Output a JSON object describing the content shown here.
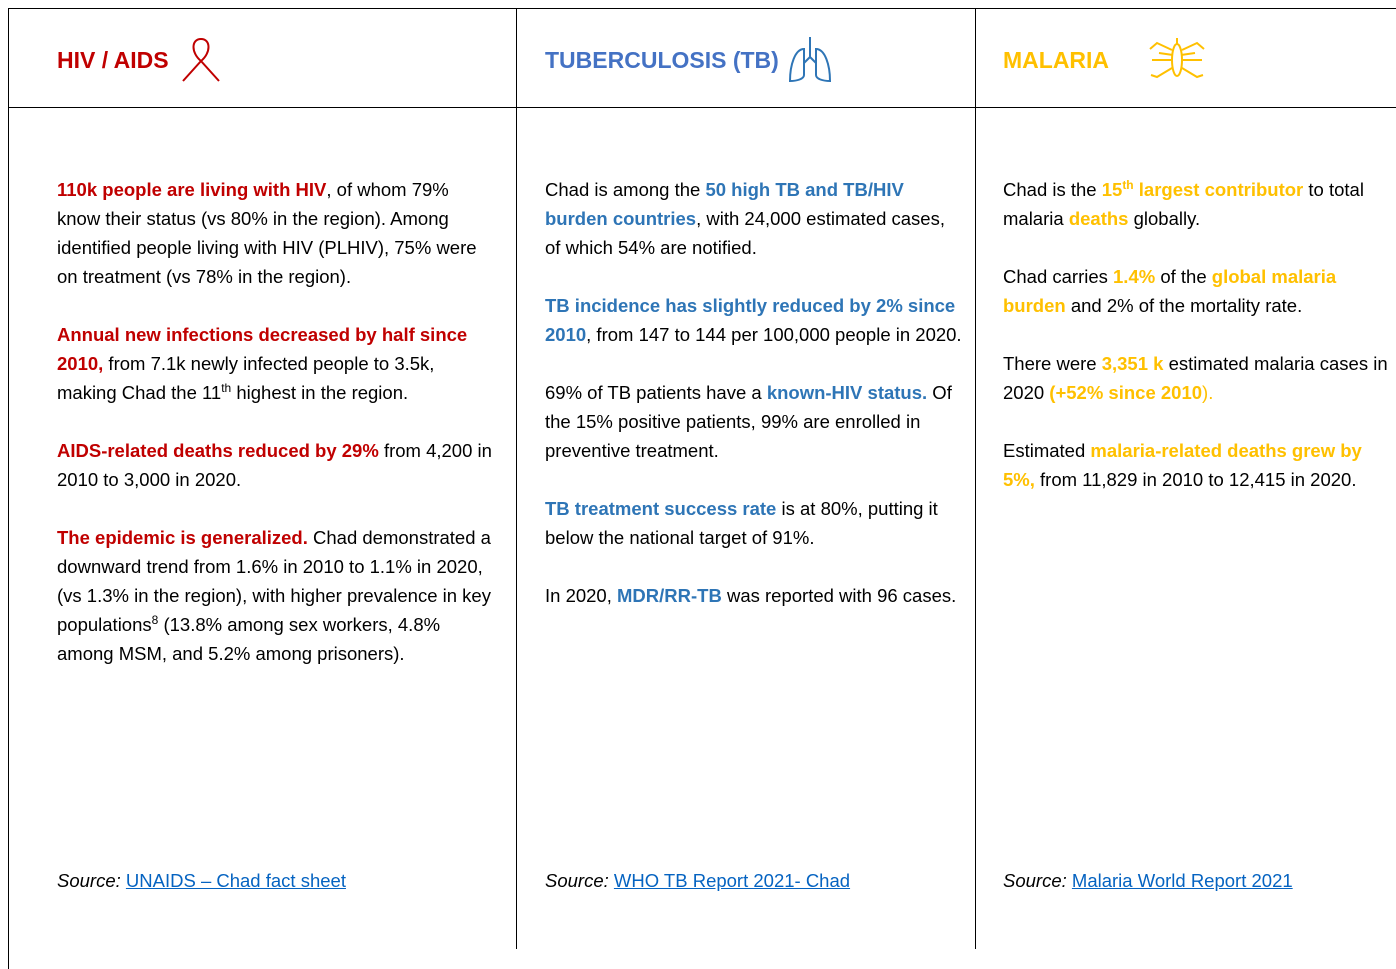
{
  "columns": [
    {
      "title": "HIV / AIDS",
      "paragraphs": [
        [
          "110k people are living with HIV",
          ", of whom 79% know their status (vs 80% in the region). Among identified people living with HIV (PLHIV), 75% were on treatment (vs 78% in the region)."
        ],
        [
          "Annual new infections decreased by half since 2010,",
          " from 7.1k newly infected people to 3.5k, making Chad the 11",
          "th",
          " highest in the region."
        ],
        [
          "AIDS-related deaths reduced by 29%",
          " from 4,200 in 2010 to 3,000 in 2020."
        ],
        [
          "The epidemic is generalized.",
          " Chad demonstrated a downward trend from 1.6% in 2010 to 1.1% in 2020, (vs 1.3% in the region), with higher prevalence in key populations",
          "8",
          " (13.8% among sex workers, 4.8% among MSM, and 5.2% among prisoners)."
        ]
      ],
      "source": {
        "label": "Source:",
        "link": "UNAIDS – Chad fact sheet"
      }
    },
    {
      "title": "TUBERCULOSIS (TB)",
      "paragraphs": [
        [
          "Chad is among the ",
          "50 high TB and TB/HIV burden countries",
          ", with 24,000 estimated cases, of which 54% are notified."
        ],
        [
          "TB incidence has slightly reduced by 2% since 2010",
          ", from 147 to 144 per 100,000 people in 2020."
        ],
        [
          "69% of TB patients have a ",
          "known-HIV status.",
          " Of the 15% positive patients, 99% are enrolled in preventive treatment."
        ],
        [
          "TB treatment success rate",
          " is at 80%, putting it below the national target of 91%."
        ],
        [
          "In 2020, ",
          "MDR/RR-TB",
          " was reported with 96 cases."
        ]
      ],
      "source": {
        "label": "Source:",
        "link": "WHO TB Report 2021- Chad"
      }
    },
    {
      "title": "MALARIA",
      "paragraphs": [
        [
          "Chad is the ",
          "15",
          "th",
          " largest contributor",
          " to total malaria ",
          "deaths",
          " globally."
        ],
        [
          "Chad carries ",
          "1.4%",
          " of the ",
          "global malaria burden",
          " and 2% of the mortality rate."
        ],
        [
          "There were ",
          "3,351 k",
          " estimated malaria cases in 2020 ",
          "(+52% since 2010",
          ")."
        ],
        [
          "Estimated ",
          "malaria-related deaths grew by 5%,",
          " from 11,829 in 2010 to 12,415 in 2020."
        ]
      ],
      "source": {
        "label": "Source:",
        "link": "Malaria World Report 2021"
      }
    }
  ]
}
